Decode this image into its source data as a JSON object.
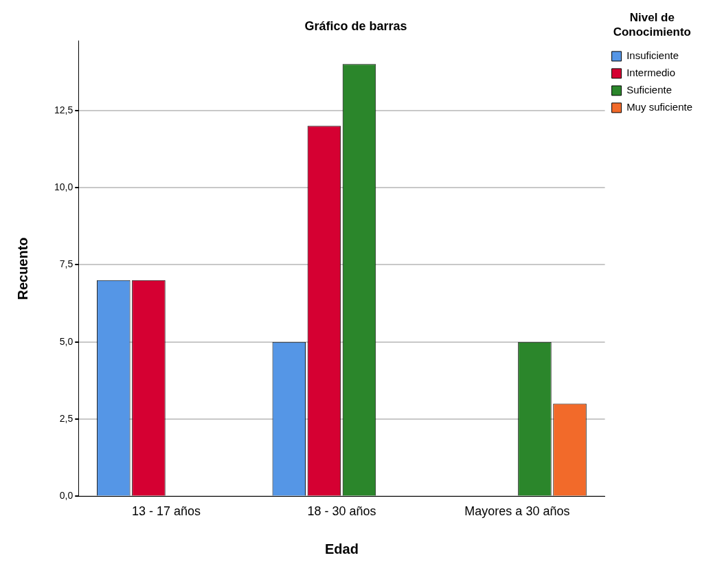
{
  "chart_data": {
    "type": "bar",
    "title": "Gráfico de barras",
    "xlabel": "Edad",
    "ylabel": "Recuento",
    "legend_title": "Nivel de Conocimiento",
    "categories": [
      "13 - 17 años",
      "18 - 30 años",
      "Mayores a 30 años"
    ],
    "series": [
      {
        "name": "Insuficiente",
        "color": "#5596e6",
        "values": [
          7,
          5,
          null
        ]
      },
      {
        "name": "Intermedio",
        "color": "#d50032",
        "values": [
          7,
          12,
          null
        ]
      },
      {
        "name": "Suficiente",
        "color": "#2b862b",
        "values": [
          null,
          14,
          5
        ]
      },
      {
        "name": "Muy suficiente",
        "color": "#f26a2a",
        "values": [
          null,
          null,
          3
        ]
      }
    ],
    "ylim": [
      0,
      14.75
    ],
    "yticks": [
      {
        "value": 0,
        "label": "0,0"
      },
      {
        "value": 2.5,
        "label": "2,5"
      },
      {
        "value": 5,
        "label": "5,0"
      },
      {
        "value": 7.5,
        "label": "7,5"
      },
      {
        "value": 10,
        "label": "10,0"
      },
      {
        "value": 12.5,
        "label": "12,5"
      }
    ],
    "grid": "y",
    "legend": "right"
  }
}
